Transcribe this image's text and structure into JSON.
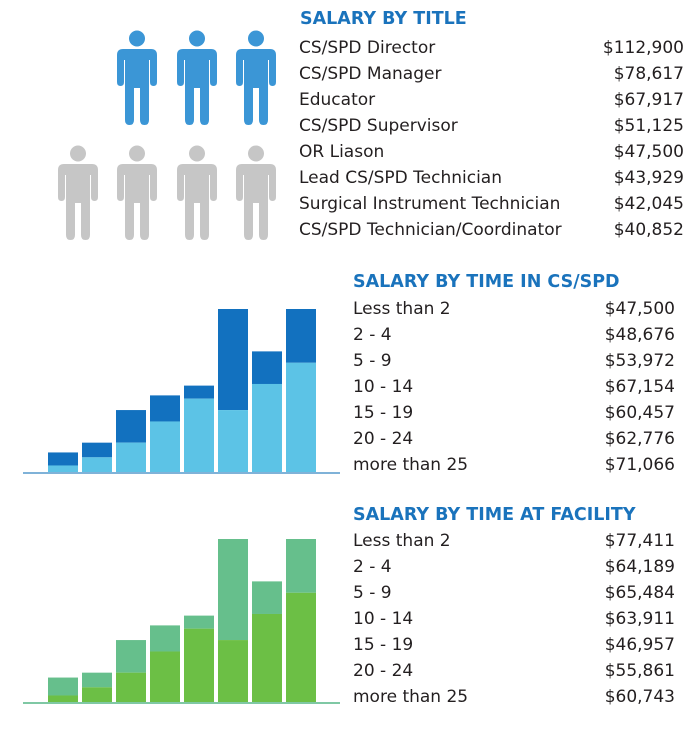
{
  "colors": {
    "title": "#1a73bc",
    "person_highlight": "#3b96d6",
    "person_muted": "#c6c6c6",
    "blue_dark": "#1271bf",
    "blue_light": "#5cc3e6",
    "blue_axis": "#7fb2d8",
    "green_dark": "#66bf8c",
    "green_light": "#6cbf45",
    "green_axis": "#7fc8a4"
  },
  "people": {
    "highlighted": 3,
    "total": 7
  },
  "salary_by_title": {
    "title": "SALARY BY TITLE",
    "rows": [
      {
        "label": "CS/SPD Director",
        "value": "$112,900"
      },
      {
        "label": "CS/SPD Manager",
        "value": "$78,617"
      },
      {
        "label": "Educator",
        "value": "$67,917"
      },
      {
        "label": "CS/SPD Supervisor",
        "value": "$51,125"
      },
      {
        "label": "OR Liason",
        "value": "$47,500"
      },
      {
        "label": "Lead CS/SPD Technician",
        "value": "$43,929"
      },
      {
        "label": "Surgical Instrument Technician",
        "value": "$42,045"
      },
      {
        "label": "CS/SPD Technician/Coordinator",
        "value": "$40,852"
      }
    ]
  },
  "salary_by_time_in_cspd": {
    "title": "SALARY BY TIME IN CS/SPD",
    "rows": [
      {
        "label": "Less than 2",
        "value": "$47,500"
      },
      {
        "label": "2 - 4",
        "value": "$48,676"
      },
      {
        "label": "5 - 9",
        "value": "$53,972"
      },
      {
        "label": "10 - 14",
        "value": "$67,154"
      },
      {
        "label": "15 - 19",
        "value": "$60,457"
      },
      {
        "label": "20 - 24",
        "value": "$62,776"
      },
      {
        "label": "more than 25",
        "value": "$71,066"
      }
    ]
  },
  "salary_by_time_at_facility": {
    "title": "SALARY BY TIME AT FACILITY",
    "rows": [
      {
        "label": "Less than 2",
        "value": "$77,411"
      },
      {
        "label": "2 - 4",
        "value": "$64,189"
      },
      {
        "label": "5 - 9",
        "value": "$65,484"
      },
      {
        "label": "10 - 14",
        "value": "$63,911"
      },
      {
        "label": "15 - 19",
        "value": "$46,957"
      },
      {
        "label": "20 - 24",
        "value": "$55,861"
      },
      {
        "label": "more than 25",
        "value": "$60,743"
      }
    ]
  },
  "chart_data": [
    {
      "type": "bar",
      "title": "",
      "stacked": true,
      "decorative": true,
      "categories": [
        "1",
        "2",
        "3",
        "4",
        "5",
        "6",
        "7",
        "8"
      ],
      "series": [
        {
          "name": "lower",
          "values": [
            0.04,
            0.09,
            0.18,
            0.31,
            0.45,
            0.38,
            0.54,
            0.67
          ]
        },
        {
          "name": "total",
          "values": [
            0.12,
            0.18,
            0.38,
            0.47,
            0.53,
            1.0,
            0.74,
            1.0
          ]
        }
      ],
      "ylim": [
        0,
        1
      ],
      "xlabel": "",
      "ylabel": "",
      "grid": false,
      "legend": "none"
    },
    {
      "type": "bar",
      "title": "",
      "stacked": true,
      "decorative": true,
      "categories": [
        "1",
        "2",
        "3",
        "4",
        "5",
        "6",
        "7",
        "8"
      ],
      "series": [
        {
          "name": "lower",
          "values": [
            0.04,
            0.09,
            0.18,
            0.31,
            0.45,
            0.38,
            0.54,
            0.67
          ]
        },
        {
          "name": "total",
          "values": [
            0.15,
            0.18,
            0.38,
            0.47,
            0.53,
            1.0,
            0.74,
            1.0
          ]
        }
      ],
      "ylim": [
        0,
        1
      ],
      "xlabel": "",
      "ylabel": "",
      "grid": false,
      "legend": "none"
    }
  ]
}
